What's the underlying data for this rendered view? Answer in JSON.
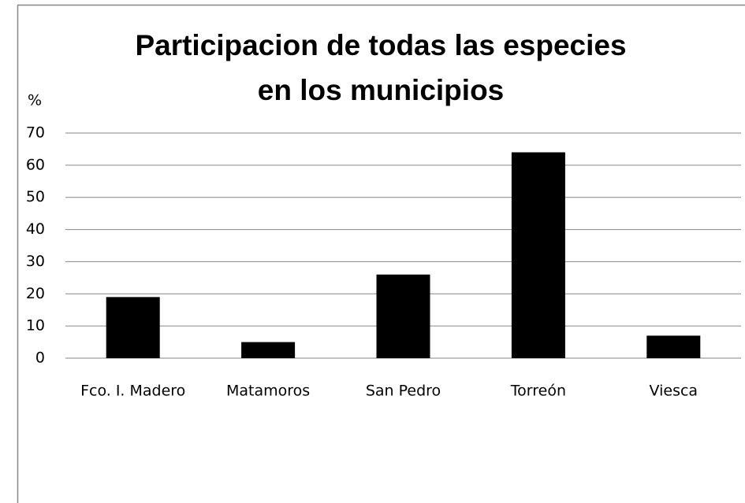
{
  "chart_data": {
    "type": "bar",
    "title": [
      "Participacion de todas las especies",
      "en los municipios"
    ],
    "y_label": "%",
    "categories": [
      "Fco. I. Madero",
      "Matamoros",
      "San Pedro",
      "Torreón",
      "Viesca"
    ],
    "values": [
      19,
      5,
      26,
      64,
      7
    ],
    "color": "#000000",
    "ylim": [
      0,
      70
    ],
    "yticks": [
      0,
      10,
      20,
      30,
      40,
      50,
      60,
      70
    ],
    "grid": true
  }
}
